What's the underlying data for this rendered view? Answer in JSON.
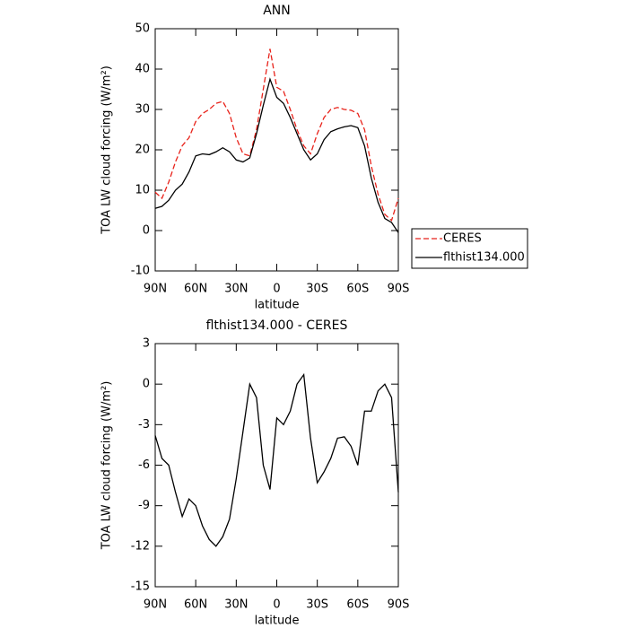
{
  "chart_data": [
    {
      "type": "line",
      "title": "ANN",
      "xlabel": "latitude",
      "ylabel": "TOA LW cloud forcing (W/m²)",
      "x": [
        90,
        85,
        80,
        75,
        70,
        65,
        60,
        55,
        50,
        45,
        40,
        35,
        30,
        25,
        20,
        15,
        10,
        5,
        0,
        -5,
        -10,
        -15,
        -20,
        -25,
        -30,
        -35,
        -40,
        -45,
        -50,
        -55,
        -60,
        -65,
        -70,
        -75,
        -80,
        -85,
        -90
      ],
      "series": [
        {
          "name": "CERES",
          "color": "#e8221a",
          "line_style": "dashed",
          "values": [
            9.5,
            8,
            12,
            17,
            21,
            23,
            27,
            29,
            30,
            31.5,
            32,
            29,
            23,
            19,
            18.5,
            25,
            35,
            45,
            35.5,
            34.5,
            30,
            25,
            21,
            19,
            24,
            28,
            30,
            30.5,
            30,
            29.8,
            29,
            25,
            16,
            9,
            4,
            2.5,
            8
          ]
        },
        {
          "name": "flthist134.000",
          "color": "#000000",
          "line_style": "solid",
          "values": [
            5.5,
            6,
            7.5,
            10,
            11.5,
            14.5,
            18.5,
            19,
            18.8,
            19.5,
            20.5,
            19.5,
            17.5,
            17,
            18,
            24,
            31,
            37.5,
            33,
            31.5,
            28,
            24,
            20,
            17.5,
            19,
            22.5,
            24.5,
            25.2,
            25.7,
            26,
            25.5,
            21,
            13,
            7,
            3,
            2,
            -0.5
          ]
        }
      ],
      "xlim": [
        90,
        -90
      ],
      "xticks": [
        {
          "value": 90,
          "label": "90N"
        },
        {
          "value": 60,
          "label": "60N"
        },
        {
          "value": 30,
          "label": "30N"
        },
        0,
        {
          "value": -30,
          "label": "30S"
        },
        {
          "value": -60,
          "label": "60S"
        },
        {
          "value": -90,
          "label": "90S"
        }
      ],
      "ylim": [
        -10,
        50
      ],
      "yticks": [
        -10,
        0,
        10,
        20,
        30,
        40,
        50
      ],
      "legend": "right"
    },
    {
      "type": "line",
      "title": "flthist134.000 - CERES",
      "xlabel": "latitude",
      "ylabel": "TOA LW cloud forcing (W/m²)",
      "x": [
        90,
        85,
        80,
        75,
        70,
        65,
        60,
        55,
        50,
        45,
        40,
        35,
        30,
        25,
        20,
        15,
        10,
        5,
        0,
        -5,
        -10,
        -15,
        -20,
        -25,
        -30,
        -35,
        -40,
        -45,
        -50,
        -55,
        -60,
        -65,
        -70,
        -75,
        -80,
        -85,
        -90
      ],
      "color": "#000000",
      "values": [
        -3.8,
        -5.5,
        -6,
        -8,
        -9.8,
        -8.5,
        -9,
        -10.5,
        -11.5,
        -12,
        -11.3,
        -10,
        -7,
        -3.5,
        0,
        -1,
        -6,
        -7.8,
        -2.5,
        -3,
        -2,
        0,
        0.7,
        -4,
        -7.3,
        -6.5,
        -5.5,
        -4,
        -3.9,
        -4.6,
        -6,
        -2,
        -2,
        -0.5,
        0,
        -1,
        -8
      ],
      "xlim": [
        90,
        -90
      ],
      "xticks": [
        {
          "value": 90,
          "label": "90N"
        },
        {
          "value": 60,
          "label": "60N"
        },
        {
          "value": 30,
          "label": "30N"
        },
        0,
        {
          "value": -30,
          "label": "30S"
        },
        {
          "value": -60,
          "label": "60S"
        },
        {
          "value": -90,
          "label": "90S"
        }
      ],
      "ylim": [
        -15,
        3
      ],
      "yticks": [
        -15,
        -12,
        -9,
        -6,
        -3,
        0,
        3
      ]
    }
  ]
}
